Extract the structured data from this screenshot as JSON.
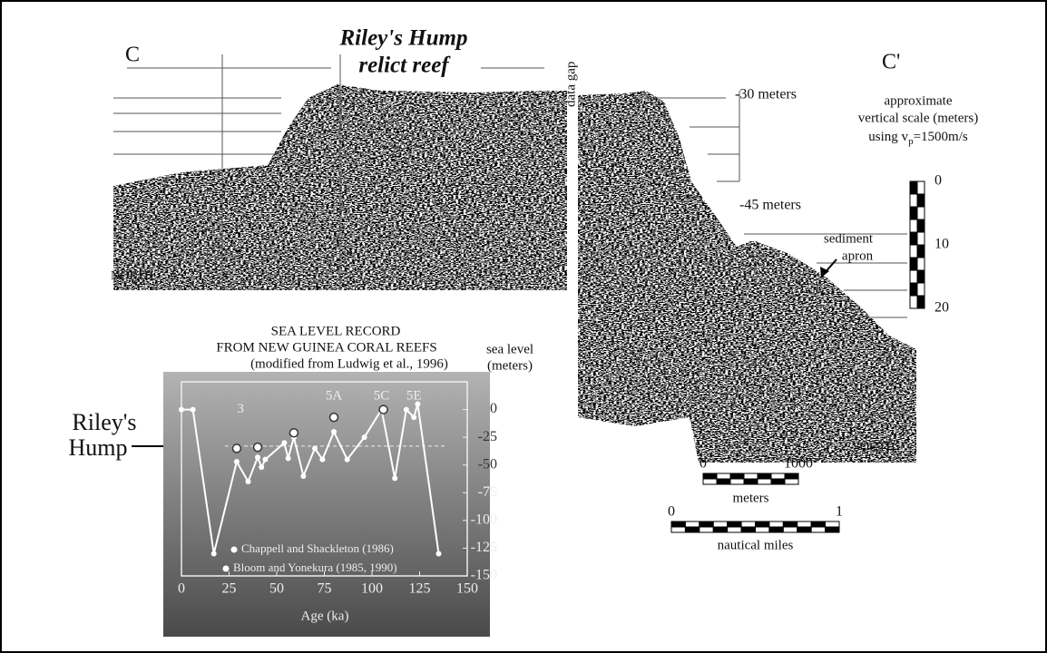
{
  "figure": {
    "section_start": "C",
    "section_end": "C'",
    "title_line1": "Riley's Hump",
    "title_line2": "relict reef",
    "data_gap": "data gap",
    "north": "NORTH",
    "south": "SOUTH",
    "depth_labels": [
      "-30 meters",
      "-45 meters"
    ],
    "sediment_label": [
      "sediment",
      "apron"
    ],
    "hump_label": [
      "Riley's",
      "Hump"
    ],
    "vertical_scale": {
      "title": [
        "approximate",
        "vertical scale (meters)"
      ],
      "velocity_prefix": "using v",
      "velocity_subscript": "p",
      "velocity_suffix": "=1500m/s",
      "ticks": [
        0,
        10,
        20
      ]
    },
    "meters_scale": {
      "ticks": [
        0,
        1000
      ],
      "label": "meters"
    },
    "nautical_scale": {
      "ticks": [
        0,
        1
      ],
      "label": "nautical miles"
    }
  },
  "chart_data": {
    "type": "line",
    "title": [
      "SEA LEVEL RECORD",
      "FROM NEW GUINEA CORAL REEFS"
    ],
    "subtitle": "(modified from Ludwig et al., 1996)",
    "x_label": "Age (ka)",
    "y_label": [
      "sea level",
      "(meters)"
    ],
    "xlim": [
      0,
      150
    ],
    "xticks": [
      0,
      25,
      50,
      75,
      100,
      125,
      150
    ],
    "ylim": [
      -150,
      25
    ],
    "yticks": [
      0,
      -25,
      -50,
      -75,
      -100,
      -125,
      -150
    ],
    "reference_y": -33,
    "annotations": [
      {
        "text": "3",
        "x": 31,
        "y": 0
      },
      {
        "text": "5A",
        "x": 80,
        "y": 12
      },
      {
        "text": "5C",
        "x": 105,
        "y": 12
      },
      {
        "text": "5E",
        "x": 122,
        "y": 12
      }
    ],
    "series": [
      {
        "name": "Chappell and Shackleton (1986)",
        "color": "#ffffff",
        "style": "line",
        "x": [
          0,
          6,
          17,
          29,
          35,
          40,
          42,
          44,
          54,
          56,
          59,
          64,
          70,
          74,
          80,
          87,
          96,
          105,
          112,
          118,
          122,
          124,
          135
        ],
        "values": [
          0,
          0,
          -130,
          -47,
          -65,
          -43,
          -52,
          -45,
          -30,
          -44,
          -25,
          -60,
          -35,
          -45,
          -20,
          -45,
          -25,
          0,
          -62,
          0,
          -7,
          5,
          -130
        ]
      },
      {
        "name": "Bloom and Yonekura (1985, 1990)",
        "color": "#ffffff",
        "style": "points",
        "x": [
          29,
          40,
          59,
          80,
          106
        ],
        "values": [
          -35,
          -34,
          -21,
          -7,
          0
        ]
      }
    ]
  }
}
